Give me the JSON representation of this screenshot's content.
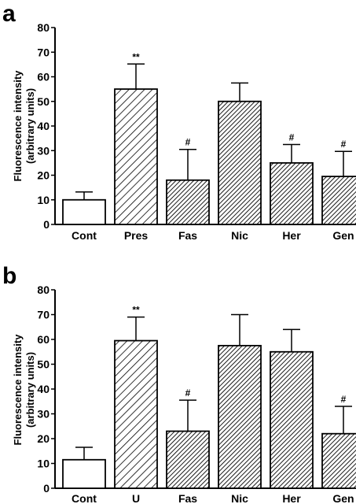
{
  "chart_data": [
    {
      "type": "bar",
      "panel": "a",
      "ylabel": [
        "Fluorescence intensity",
        "(arbitrary units)"
      ],
      "ylim": [
        0,
        80
      ],
      "yticks": [
        0,
        10,
        20,
        30,
        40,
        50,
        60,
        70,
        80
      ],
      "categories": [
        "Cont",
        "Pres",
        "Fas",
        "Nic",
        "Her",
        "Gen"
      ],
      "values": [
        10,
        55,
        18,
        50,
        25,
        19.5
      ],
      "error_up": [
        3.2,
        10.2,
        12.5,
        7.5,
        7.5,
        10.2
      ],
      "significance": [
        "",
        "**",
        "#",
        "",
        "#",
        "#"
      ],
      "fill_style": [
        "open",
        "wide-hatch",
        "dense-hatch",
        "dense-hatch",
        "dense-hatch",
        "dense-hatch"
      ]
    },
    {
      "type": "bar",
      "panel": "b",
      "ylabel": [
        "Fluorescence intensity",
        "(arbitrary units)"
      ],
      "ylim": [
        0,
        80
      ],
      "yticks": [
        0,
        10,
        20,
        30,
        40,
        50,
        60,
        70,
        80
      ],
      "categories": [
        "Cont",
        "U",
        "Fas",
        "Nic",
        "Her",
        "Gen"
      ],
      "values": [
        11.5,
        59.5,
        23,
        57.5,
        55,
        22
      ],
      "error_up": [
        5,
        9.5,
        12.5,
        12.5,
        9,
        11
      ],
      "significance": [
        "",
        "**",
        "#",
        "",
        "",
        "#"
      ],
      "fill_style": [
        "open",
        "wide-hatch",
        "dense-hatch",
        "dense-hatch",
        "dense-hatch",
        "dense-hatch"
      ]
    }
  ]
}
